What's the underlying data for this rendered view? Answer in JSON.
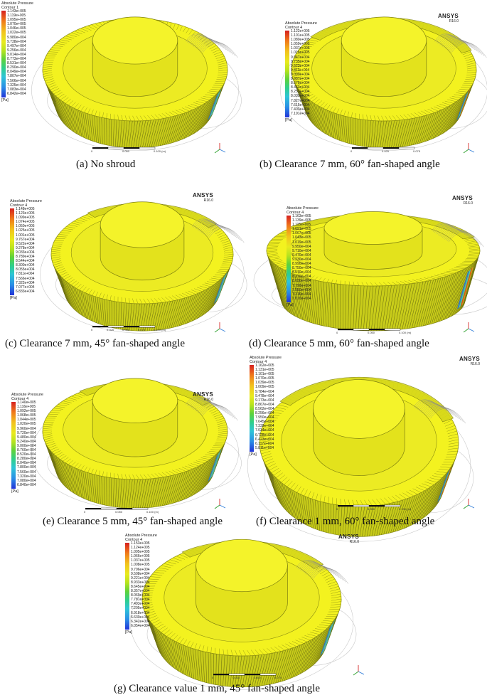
{
  "colors": {
    "gear_body": "#c8cc1a",
    "gear_face": "#f3f21f",
    "hub_side": "#e3e21c",
    "pressure_low": "#1e6ee8",
    "pressure_mid": "#33d6c6",
    "pressure_high": "#e8461b"
  },
  "panels": [
    {
      "caption": "(a) No shroud",
      "legend_title": [
        "Absolute Pressure",
        "Contour 1"
      ],
      "legend_values": [
        "1.143e+005",
        "1.119e+005",
        "1.095e+005",
        "1.070e+005",
        "1.046e+005",
        "1.022e+005",
        "9.980e+004",
        "9.738e+004",
        "9.497e+004",
        "9.256e+004",
        "9.014e+004",
        "8.773e+004",
        "8.531e+004",
        "8.290e+004",
        "8.049e+004",
        "7.807e+004",
        "7.566e+004",
        "7.325e+004",
        "7.083e+004",
        "6.842e+004"
      ],
      "unit": "[Pa]",
      "logo": [
        "",
        ""
      ],
      "scale": [
        "0",
        "0.050",
        "0.100 (m)"
      ],
      "tilt": "flat",
      "hotspot": "blue",
      "shroud": "none"
    },
    {
      "caption": "(b) Clearance 7 mm, 60° fan-shaped angle",
      "legend_title": [
        "Absolute Pressure",
        "Contour 4"
      ],
      "legend_values": [
        "1.122e+005",
        "1.101e+005",
        "1.080e+005",
        "1.059e+005",
        "1.037e+005",
        "1.016e+005",
        "9.947e+004",
        "9.735e+004",
        "9.523e+004",
        "9.311e+004",
        "9.099e+004",
        "8.887e+004",
        "8.675e+004",
        "8.463e+004",
        "8.251e+004",
        "8.039e+004",
        "7.827e+004",
        "7.615e+004",
        "7.403e+004",
        "7.191e+004"
      ],
      "unit": "[Pa]",
      "logo": [
        "ANSYS",
        "R16.0"
      ],
      "scale": [
        "0",
        "0.025",
        "0.075"
      ],
      "tilt": "flat",
      "hotspot": "red",
      "shroud": "60"
    },
    {
      "caption": "(c) Clearance 7 mm, 45° fan-shaped angle",
      "legend_title": [
        "Absolute Pressure",
        "Contour 4"
      ],
      "legend_values": [
        "1.148e+005",
        "1.123e+005",
        "1.099e+005",
        "1.074e+005",
        "1.050e+005",
        "1.025e+005",
        "1.001e+005",
        "9.767e+004",
        "9.522e+004",
        "9.278e+004",
        "9.033e+004",
        "8.789e+004",
        "8.544e+004",
        "8.300e+004",
        "8.055e+004",
        "7.811e+004",
        "7.566e+004",
        "7.322e+004",
        "7.077e+004",
        "6.833e+004"
      ],
      "unit": "[Pa]",
      "logo": [
        "ANSYS",
        "R16.0"
      ],
      "scale": [
        "0",
        "0.025",
        "0.050",
        "0.075",
        "0.100 (m)"
      ],
      "tilt": "flat",
      "hotspot": "blue",
      "shroud": "45"
    },
    {
      "caption": "(d) Clearance 5 mm, 60° fan-shaped angle",
      "legend_title": [
        "Absolute Pressure",
        "Contour 4"
      ],
      "legend_values": [
        "1.163e+005",
        "1.139e+005",
        "1.115e+005",
        "1.091e+005",
        "1.067e+005",
        "1.043e+005",
        "1.019e+005",
        "9.950e+004",
        "9.710e+004",
        "9.470e+004",
        "9.230e+004",
        "8.990e+004",
        "8.750e+004",
        "8.510e+004",
        "8.270e+004",
        "8.030e+004",
        "7.790e+004",
        "7.550e+004",
        "7.310e+004",
        "7.070e+004"
      ],
      "unit": "[Pa]",
      "logo": [
        "ANSYS",
        "R16.0"
      ],
      "scale": [
        "0",
        "0.050",
        "0.100 (m)"
      ],
      "tilt": "side",
      "hotspot": "red",
      "shroud": "60"
    },
    {
      "caption": "(e) Clearance 5 mm, 45° fan-shaped angle",
      "legend_title": [
        "Absolute Pressure",
        "Contour 4"
      ],
      "legend_values": [
        "1.140e+005",
        "1.116e+005",
        "1.092e+005",
        "1.068e+005",
        "1.044e+005",
        "1.020e+005",
        "9.960e+004",
        "9.720e+004",
        "9.480e+004",
        "9.240e+004",
        "9.000e+004",
        "8.760e+004",
        "8.520e+004",
        "8.280e+004",
        "8.040e+004",
        "7.800e+004",
        "7.560e+004",
        "7.320e+004",
        "7.080e+004",
        "6.840e+004"
      ],
      "unit": "[Pa]",
      "logo": [
        "ANSYS",
        "R16.0"
      ],
      "scale": [
        "0",
        "0.050",
        "0.100 (m)"
      ],
      "tilt": "flat",
      "hotspot": "blue",
      "shroud": "45"
    },
    {
      "caption": "(f) Clearance 1 mm, 60° fan-shaped angle",
      "legend_title": [
        "Absolute Pressure",
        "Contour 4"
      ],
      "legend_values": [
        "1.162e+005",
        "1.131e+005",
        "1.101e+005",
        "1.070e+005",
        "1.039e+005",
        "1.009e+005",
        "9.784e+004",
        "9.478e+004",
        "9.173e+004",
        "8.867e+004",
        "8.562e+004",
        "8.256e+004",
        "7.950e+004",
        "7.645e+004",
        "7.339e+004",
        "7.034e+004",
        "6.728e+004",
        "6.423e+004",
        "6.117e+004",
        "5.811e+004"
      ],
      "unit": "[Pa]",
      "logo": [
        "ANSYS",
        "R16.0"
      ],
      "scale": [
        "0",
        "0.050",
        "0.100 (m)"
      ],
      "tilt": "flat",
      "hotspot": "red",
      "shroud": "60"
    },
    {
      "caption": "(g) Clearance value 1 mm, 45° fan-shaped angle",
      "legend_title": [
        "Absolute Pressure",
        "Contour 4"
      ],
      "legend_values": [
        "1.153e+005",
        "1.124e+005",
        "1.095e+005",
        "1.066e+005",
        "1.037e+005",
        "1.008e+005",
        "9.796e+004",
        "9.508e+004",
        "9.221e+004",
        "8.933e+004",
        "8.645e+004",
        "8.357e+004",
        "8.069e+004",
        "7.781e+004",
        "7.493e+004",
        "7.205e+004",
        "6.918e+004",
        "6.630e+004",
        "6.342e+004",
        "6.054e+004"
      ],
      "unit": "[Pa]",
      "logo": [
        "ANSYS",
        "R16.0"
      ],
      "scale": [
        "0",
        "0.025",
        "0.050",
        "0.075"
      ],
      "tilt": "flat",
      "hotspot": "blue",
      "shroud": "45"
    }
  ]
}
